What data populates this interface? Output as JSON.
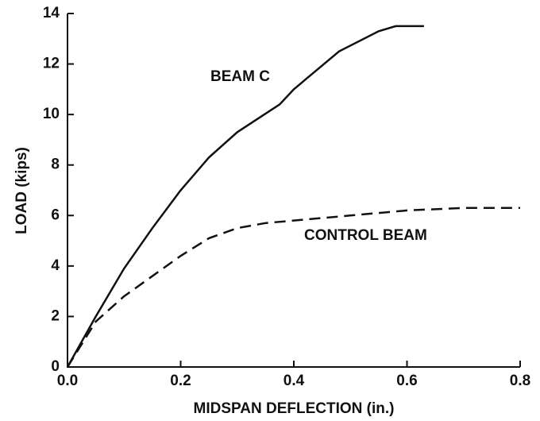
{
  "chart_data": {
    "type": "line",
    "xlabel": "MIDSPAN DEFLECTION (in.)",
    "ylabel": "LOAD (kips)",
    "xlim": [
      0,
      0.8
    ],
    "xticks": [
      {
        "value": 0,
        "label": "0.0"
      },
      0.2,
      0.4,
      0.6,
      0.8
    ],
    "ylim": [
      0,
      14
    ],
    "yticks": [
      0,
      2,
      4,
      6,
      8,
      10,
      12,
      14
    ],
    "series": [
      {
        "name": "BEAM C",
        "color": "#111111",
        "dash": false,
        "x": [
          0,
          0.05,
          0.1,
          0.15,
          0.2,
          0.25,
          0.3,
          0.375,
          0.4,
          0.48,
          0.55,
          0.58,
          0.63
        ],
        "values": [
          0,
          2.0,
          3.9,
          5.5,
          7.0,
          8.3,
          9.3,
          10.4,
          11.0,
          12.5,
          13.3,
          13.5,
          13.5
        ]
      },
      {
        "name": "CONTROL BEAM",
        "color": "#111111",
        "dash": true,
        "x": [
          0,
          0.05,
          0.1,
          0.15,
          0.2,
          0.25,
          0.3,
          0.35,
          0.4,
          0.5,
          0.6,
          0.7,
          0.8
        ],
        "values": [
          0,
          1.8,
          2.8,
          3.6,
          4.4,
          5.1,
          5.5,
          5.7,
          5.8,
          6.0,
          6.2,
          6.3,
          6.3
        ]
      }
    ]
  }
}
